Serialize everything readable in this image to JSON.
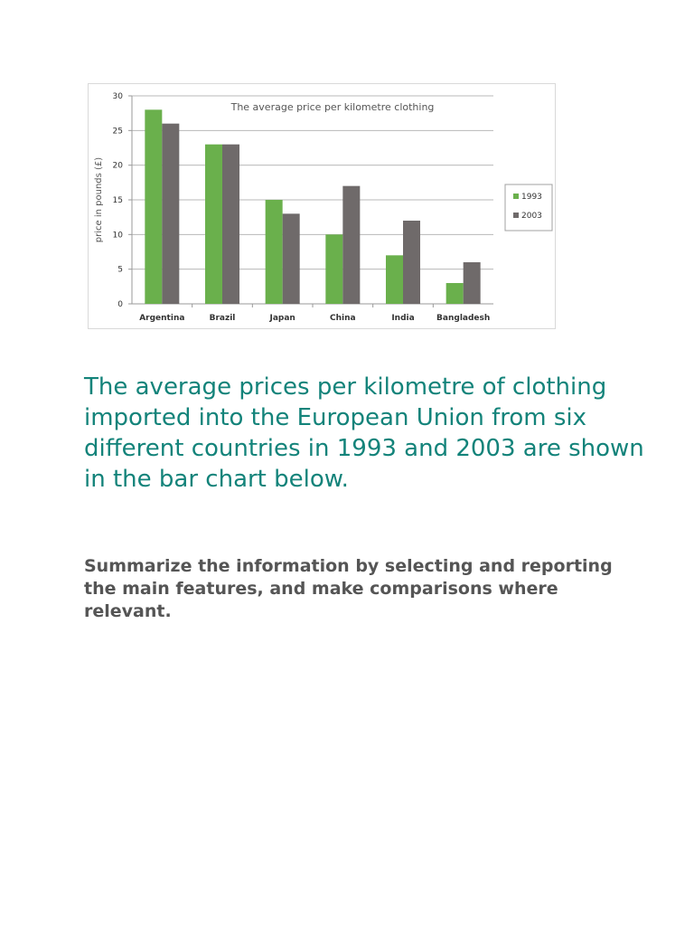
{
  "chart_data": {
    "type": "bar",
    "title": "The average price per kilometre clothing",
    "xlabel": "",
    "ylabel": "price in pounds (£)",
    "ylim": [
      0,
      30
    ],
    "yticks": [
      0,
      5,
      10,
      15,
      20,
      25,
      30
    ],
    "grid": true,
    "legend_position": "right",
    "categories": [
      "Argentina",
      "Brazil",
      "Japan",
      "China",
      "India",
      "Bangladesh"
    ],
    "series": [
      {
        "name": "1993",
        "color": "#6ab04c",
        "values": [
          28,
          23,
          15,
          10,
          7,
          3
        ]
      },
      {
        "name": "2003",
        "color": "#6f6a6a",
        "values": [
          26,
          23,
          13,
          17,
          12,
          6
        ]
      }
    ]
  },
  "text": {
    "intro": "The average prices per kilometre of clothing imported into the European Union from six different countries in 1993 and 2003 are shown in the bar chart below.",
    "task": "Summarize the information by selecting and reporting the main features, and make comparisons where relevant."
  },
  "colors": {
    "intro_text": "#13837a",
    "task_text": "#555555"
  }
}
